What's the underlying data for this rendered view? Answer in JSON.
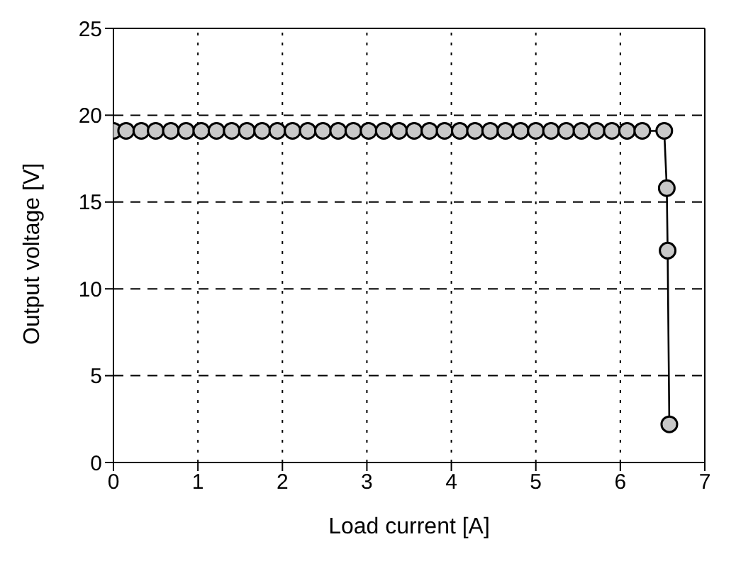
{
  "chart_data": {
    "type": "line",
    "xlabel": "Load current [A]",
    "ylabel": "Output voltage [V]",
    "x": [
      0,
      0.15,
      0.33,
      0.5,
      0.68,
      0.86,
      1.04,
      1.22,
      1.4,
      1.58,
      1.76,
      1.94,
      2.12,
      2.3,
      2.48,
      2.66,
      2.84,
      3.02,
      3.2,
      3.38,
      3.56,
      3.74,
      3.92,
      4.1,
      4.28,
      4.46,
      4.64,
      4.82,
      5.0,
      5.18,
      5.36,
      5.54,
      5.72,
      5.9,
      6.08,
      6.26,
      6.52,
      6.55,
      6.56,
      6.58
    ],
    "series": [
      {
        "color": "#000000",
        "values": [
          19.1,
          19.1,
          19.1,
          19.1,
          19.1,
          19.1,
          19.1,
          19.1,
          19.1,
          19.1,
          19.1,
          19.1,
          19.1,
          19.1,
          19.1,
          19.1,
          19.1,
          19.1,
          19.1,
          19.1,
          19.1,
          19.1,
          19.1,
          19.1,
          19.1,
          19.1,
          19.1,
          19.1,
          19.1,
          19.1,
          19.1,
          19.1,
          19.1,
          19.1,
          19.1,
          19.1,
          19.1,
          15.8,
          12.2,
          2.2
        ]
      }
    ],
    "xlim": [
      0,
      7
    ],
    "xticks": [
      0,
      1,
      2,
      3,
      4,
      5,
      6,
      7
    ],
    "ylim": [
      0,
      25
    ],
    "yticks": [
      0,
      5,
      10,
      15,
      20,
      25
    ],
    "grid": true,
    "marker": "circle",
    "line_style": "solid"
  }
}
